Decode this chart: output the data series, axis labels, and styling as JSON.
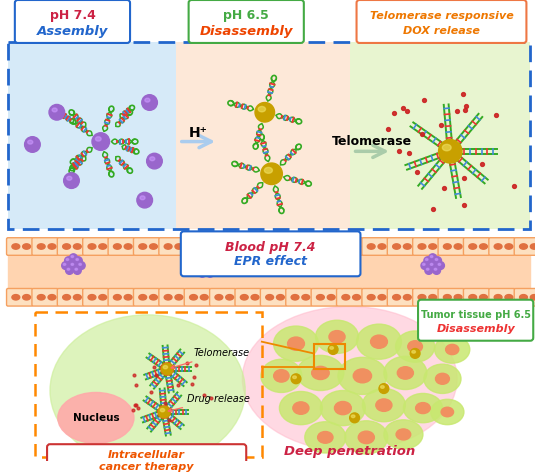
{
  "bg_color": "#ffffff",
  "panel1_bg": "#d6eaf8",
  "panel2_bg": "#fde8d8",
  "panel3_bg": "#e8f5d0",
  "box1_line1": "pH 7.4",
  "box1_line2": "Assembly",
  "box2_line1": "pH 6.5",
  "box2_line2": "Disassembly",
  "box3_line1": "Telomerase responsive",
  "box3_line2": "DOX release",
  "arrow1_label": "H⁺",
  "arrow2_label": "Telomerase",
  "blood_label1": "Blood pH 7.4",
  "blood_label2": "EPR effect",
  "tumor_label1": "Tumor tissue pH 6.5",
  "tumor_label2": "Disassembly",
  "deep_label": "Deep penetration",
  "intracell_label1": "Intracellular",
  "intracell_label2": "cancer therapy",
  "nucleus_label": "Nucleus",
  "telomerase_label": "Telomerase",
  "drug_label": "Drug release",
  "purple_color": "#9966cc",
  "gold_color": "#ccaa00",
  "green_strand": "#33aa22",
  "blue_rung": "#4488dd",
  "red_rung": "#ee3333",
  "orange_strand": "#ee7700"
}
